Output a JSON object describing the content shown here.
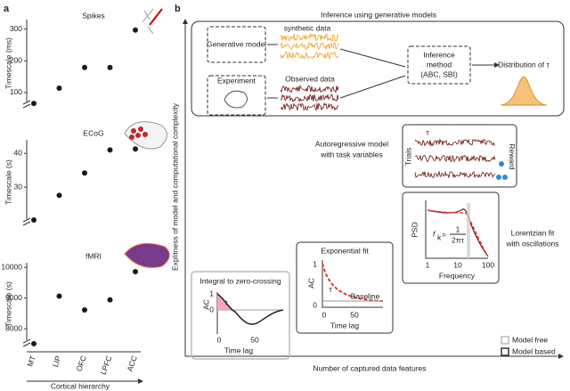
{
  "panel_labels": [
    "a",
    "b"
  ],
  "chart_data": [
    {
      "type": "scatter",
      "title": "Spikes",
      "y_label": "Timescale (ms)",
      "values": [
        66,
        114,
        179,
        179,
        297
      ],
      "ylim": [
        55,
        330
      ],
      "yticks": [
        100,
        200,
        300
      ],
      "color": "#1a1a1a"
    },
    {
      "type": "scatter",
      "title": "ECoG",
      "y_label": "Timescale (s)",
      "values": [
        20.3,
        27.6,
        34.2,
        41,
        41.3
      ],
      "ylim": [
        19,
        44
      ],
      "yticks": [
        30,
        40
      ],
      "color": "#1a1a1a"
    },
    {
      "type": "scatter",
      "title": "fMRI",
      "y_label": "Timescale (s)",
      "values": [
        7510,
        9060,
        8610,
        8940,
        9860
      ],
      "ylim": [
        7450,
        10150
      ],
      "yticks": [
        8000,
        9000,
        10000
      ],
      "color": "#1a1a1a",
      "categories": [
        "MT",
        "LIP",
        "OFC",
        "LPFC",
        "ACC"
      ],
      "x_label": "Cortical hierarchy"
    }
  ],
  "diagram": {
    "top_title": "Inference using generative models",
    "generative_model": "Generative model",
    "synthetic_data": "synthetic data",
    "experiment": "Experiment",
    "observed_data": "Observed data",
    "inference_method": [
      "Inference",
      "method",
      "(ABC, SBI)"
    ],
    "distribution": "Distribution of τ",
    "autoregressive": [
      "Autoregressive model",
      "with task variables"
    ],
    "ar_tau": "τ",
    "trials": "Trials",
    "reward": "Reward",
    "lorentzian": [
      "Lorentzian fit",
      "with oscillations"
    ],
    "psd": "PSD",
    "frequency": "Frequency",
    "freq_ticks": [
      "1",
      "10",
      "100"
    ],
    "formula": [
      "f",
      "k",
      "= ",
      "1",
      "2πτ"
    ],
    "exponential": "Exponential fit",
    "exp_ac": "AC",
    "exp_yticks": [
      "1",
      "0"
    ],
    "exp_xticks": [
      "0",
      "50"
    ],
    "exp_xlabel": "Time lag",
    "baseline": "Baseline",
    "exp_tau": "τ",
    "integral": "Integral to zero-crossing",
    "int_ac": "AC",
    "int_yticks": [
      "1",
      "0"
    ],
    "int_xticks": [
      "0",
      "50"
    ],
    "int_xlabel": "Time lag",
    "int_tau": "τ",
    "legend": [
      "Model free",
      "Model based"
    ],
    "y_axis": "Explitness of model and computational complexity",
    "x_axis": "Number of captured data features"
  }
}
